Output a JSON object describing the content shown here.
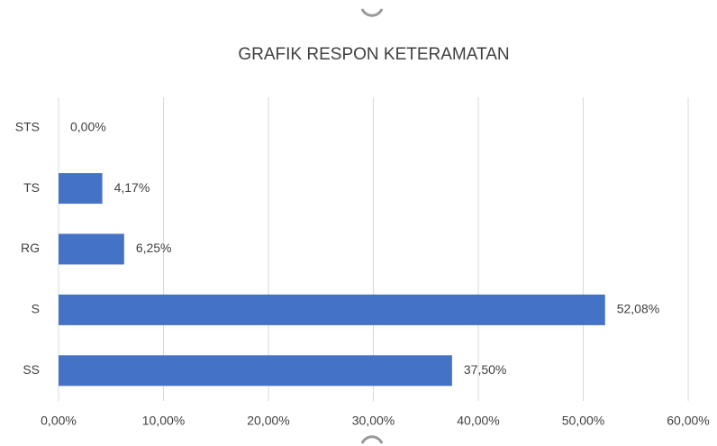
{
  "chart_data": {
    "type": "bar",
    "orientation": "horizontal",
    "title": "GRAFIK RESPON KETERAMATAN",
    "categories": [
      "STS",
      "TS",
      "RG",
      "S",
      "SS"
    ],
    "values": [
      0,
      4.17,
      6.25,
      52.08,
      37.5
    ],
    "value_labels": [
      "0,00%",
      "4,17%",
      "6,25%",
      "52,08%",
      "37,50%"
    ],
    "color": "#4472c4",
    "xlim": [
      0,
      60
    ],
    "xticks": [
      {
        "value": 0,
        "label": "0,00%"
      },
      {
        "value": 10,
        "label": "10,00%"
      },
      {
        "value": 20,
        "label": "20,00%"
      },
      {
        "value": 30,
        "label": "30,00%"
      },
      {
        "value": 40,
        "label": "40,00%"
      },
      {
        "value": 50,
        "label": "50,00%"
      },
      {
        "value": 60,
        "label": "60,00%"
      }
    ],
    "grid": true
  }
}
